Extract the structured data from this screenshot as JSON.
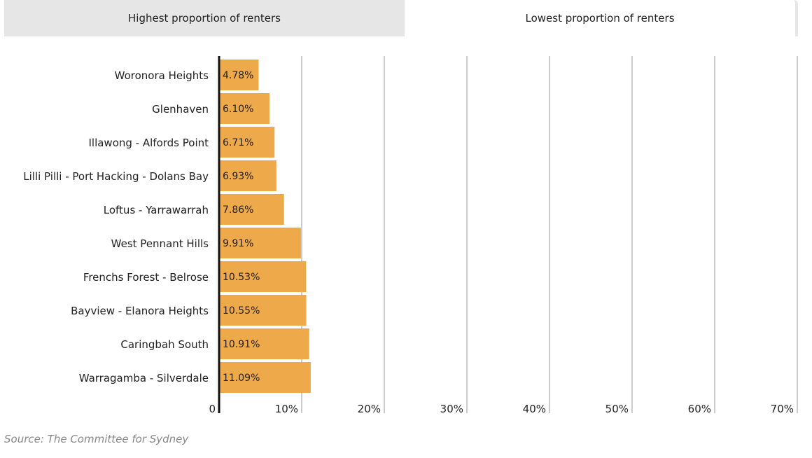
{
  "tabs": {
    "highest_label": "Highest proportion of renters",
    "lowest_label": "Lowest proportion of renters"
  },
  "chart_data": {
    "type": "bar",
    "orientation": "horizontal",
    "categories": [
      "Woronora Heights",
      "Glenhaven",
      "Illawong - Alfords Point",
      "Lilli Pilli - Port Hacking - Dolans Bay",
      "Loftus - Yarrawarrah",
      "West Pennant Hills",
      "Frenchs Forest - Belrose",
      "Bayview - Elanora Heights",
      "Caringbah South",
      "Warragamba - Silverdale"
    ],
    "values": [
      4.78,
      6.1,
      6.71,
      6.93,
      7.86,
      9.91,
      10.53,
      10.55,
      10.91,
      11.09
    ],
    "data_labels": [
      "4.78%",
      "6.10%",
      "6.71%",
      "6.93%",
      "7.86%",
      "9.91%",
      "10.53%",
      "10.55%",
      "10.91%",
      "11.09%"
    ],
    "xlim": [
      0,
      70
    ],
    "xticks": [
      0,
      10,
      20,
      30,
      40,
      50,
      60,
      70
    ],
    "xtick_labels": [
      "0",
      "10%",
      "20%",
      "30%",
      "40%",
      "50%",
      "60%",
      "70%"
    ],
    "grid": true,
    "bar_color": "#eea94b"
  },
  "source": "Source: The Committee for Sydney"
}
